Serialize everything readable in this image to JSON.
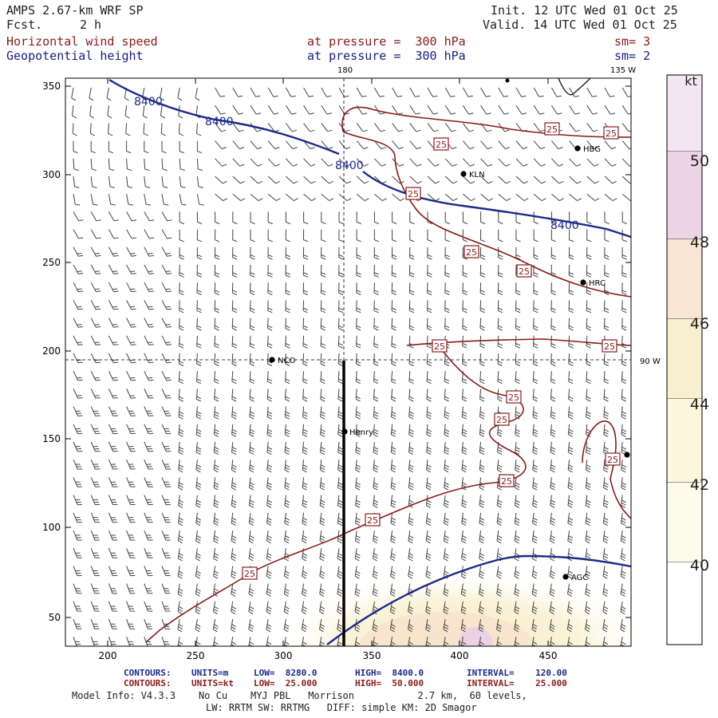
{
  "header": {
    "model": "AMPS 2.67-km WRF SP",
    "fcst_label": "Fcst.",
    "fcst_value": "2 h",
    "init": "Init. 12 UTC Wed 01 Oct 25",
    "valid": "Valid. 14 UTC Wed 01 Oct 25",
    "field1": "Horizontal wind speed",
    "field2": "Geopotential height",
    "pressure1": "at pressure =  300 hPa",
    "pressure2": "at pressure =  300 hPa",
    "sm1": "sm= 3",
    "sm2": "sm= 2"
  },
  "map": {
    "lon_top": "180",
    "lon_topright": "135 W",
    "lon_right": "90 W",
    "x_ticks": [
      "200",
      "250",
      "300",
      "350",
      "400",
      "450"
    ],
    "y_ticks": [
      "350",
      "300",
      "250",
      "200",
      "150",
      "100",
      "50"
    ],
    "stations": [
      "HBG",
      "KLN",
      "HRC",
      "NCO",
      "Henry",
      "AGC"
    ],
    "height_contour_labels": [
      "8400",
      "8400",
      "8400",
      "8400"
    ],
    "speed_contour_labels": [
      "25",
      "25",
      "25",
      "25",
      "25",
      "25",
      "25",
      "25",
      "25",
      "25",
      "25",
      "25",
      "25",
      "25"
    ]
  },
  "colorbar": {
    "unit": "kt",
    "labels": [
      "50",
      "48",
      "46",
      "44",
      "42",
      "40"
    ],
    "colors": [
      "#f3e6f0",
      "#ecd3e6",
      "#f7e6d4",
      "#f8efcf",
      "#fbf6dc",
      "#fdfcec",
      "#ffffff"
    ]
  },
  "footer": {
    "c1_label": "CONTOURS:",
    "c1_units": "UNITS=m",
    "c1_low": "LOW=  8280.0",
    "c1_high": "HIGH=  8400.0",
    "c1_int": "INTERVAL=    120.00",
    "c2_label": "CONTOURS:",
    "c2_units": "UNITS=kt",
    "c2_low": "LOW=  25.000",
    "c2_high": "HIGH=  50.000",
    "c2_int": "INTERVAL=    25.000",
    "model_info": "Model Info: V4.3.3    No Cu    MYJ PBL   Morrison           2.7 km,  60 levels,",
    "model_info2": "LW: RRTM SW: RRTMG   DIFF: simple KM: 2D Smagor"
  },
  "colors": {
    "height": "#1a2a8b",
    "speed": "#8b1a1a",
    "shading_yellow": "#fbf3d0",
    "shading_pink": "#eed4e4"
  }
}
